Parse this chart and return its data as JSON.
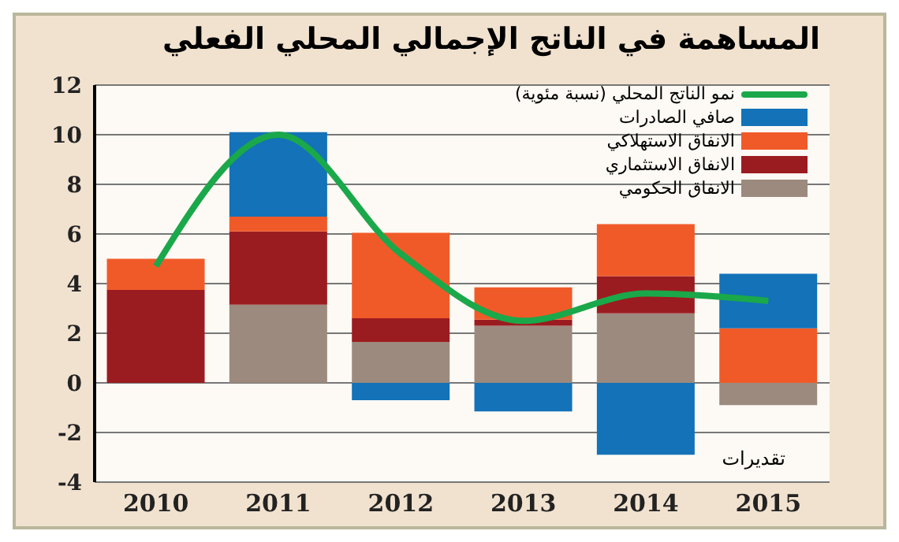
{
  "chart_data": {
    "type": "bar",
    "title": "المساهمة في الناتج الإجمالي المحلي الفعلي",
    "categories": [
      "2010",
      "2011",
      "2012",
      "2013",
      "2014",
      "2015"
    ],
    "stacked": true,
    "ylim": [
      -4,
      12
    ],
    "yticks": [
      -4,
      -2,
      0,
      2,
      4,
      6,
      8,
      10,
      12
    ],
    "grid": "y",
    "legend": "top right",
    "annotations": [
      "تقديرات"
    ],
    "series": [
      {
        "name": "الانفاق الحكومي",
        "color": "#9c8a7e",
        "values": [
          0,
          3.15,
          1.65,
          2.3,
          2.8,
          -0.9
        ]
      },
      {
        "name": "الانفاق الاستثماري",
        "color": "#9b1c20",
        "values": [
          3.75,
          2.95,
          0.95,
          0.25,
          1.5,
          0
        ]
      },
      {
        "name": "الانفاق الاستهلاكي",
        "color": "#f05a28",
        "values": [
          1.25,
          0.6,
          3.45,
          1.3,
          2.1,
          2.2
        ]
      },
      {
        "name": "صافي الصادرات",
        "color": "#1372b8",
        "values": [
          0,
          3.4,
          -0.7,
          -1.15,
          -2.9,
          2.2
        ]
      },
      {
        "name": "نمو الناتج المحلي (نسبة مئوية)",
        "type": "line",
        "color": "#1aa84a",
        "values": [
          4.7,
          10,
          5.2,
          2.5,
          3.6,
          3.3
        ]
      }
    ]
  }
}
